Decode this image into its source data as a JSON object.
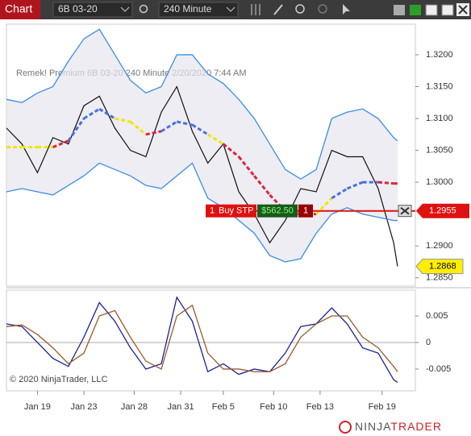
{
  "toolbar": {
    "title": "Chart",
    "instrument": "6B 03-20",
    "interval": "240 Minute"
  },
  "legend_text": "Remek!  Premium  6B 03-20  240 Minute  2/20/2020 7:44 AM",
  "copyright": "© 2020 NinjaTrader, LLC",
  "logo": {
    "part1": "NINJA",
    "part2": "TRADER"
  },
  "order": {
    "quantity": "1",
    "label": "Buy STP",
    "pnl": "$562.50",
    "quantity2": "1",
    "price": {
      "value": 1.2955,
      "label": "1.2955"
    }
  },
  "last_price": {
    "value": 1.2868,
    "label": "1.2868"
  },
  "chart_data": [
    {
      "type": "line",
      "x": [
        0,
        4,
        8,
        12,
        16,
        20,
        24,
        28,
        32,
        36,
        40,
        44,
        48,
        52,
        56,
        60,
        64,
        68,
        72,
        76,
        80,
        84,
        88,
        92,
        96,
        100,
        101
      ],
      "xlim": [
        0,
        105.6
      ],
      "xticks": [
        {
          "value": 8,
          "label": "Jan 19"
        },
        {
          "value": 20,
          "label": "Jan 23"
        },
        {
          "value": 33,
          "label": "Jan 28"
        },
        {
          "value": 45,
          "label": "Jan 31"
        },
        {
          "value": 56,
          "label": "Feb 5"
        },
        {
          "value": 69,
          "label": "Feb 10"
        },
        {
          "value": 81,
          "label": "Feb 13"
        },
        {
          "value": 97,
          "label": "Feb 19"
        }
      ],
      "ylim": [
        1.2837,
        1.3248
      ],
      "yticks": [
        {
          "value": 1.32,
          "label": "1.3200"
        },
        {
          "value": 1.315,
          "label": "1.3150"
        },
        {
          "value": 1.31,
          "label": "1.3100"
        },
        {
          "value": 1.305,
          "label": "1.3050"
        },
        {
          "value": 1.3,
          "label": "1.3000"
        },
        {
          "value": 1.29,
          "label": "1.2900"
        },
        {
          "value": 1.285,
          "label": "1.2850"
        }
      ],
      "series": [
        {
          "name": "Close",
          "color": "#111111",
          "values": [
            1.3085,
            1.306,
            1.3015,
            1.307,
            1.306,
            1.312,
            1.3135,
            1.3085,
            1.305,
            1.304,
            1.311,
            1.315,
            1.308,
            1.303,
            1.306,
            1.2985,
            1.295,
            1.2905,
            1.294,
            1.299,
            1.2985,
            1.305,
            1.304,
            1.304,
            1.299,
            1.2905,
            1.2868
          ]
        },
        {
          "name": "Upper",
          "color": "#3a8ee6",
          "values": [
            1.313,
            1.3125,
            1.314,
            1.315,
            1.319,
            1.3225,
            1.324,
            1.32,
            1.316,
            1.314,
            1.315,
            1.32,
            1.32,
            1.317,
            1.3155,
            1.313,
            1.31,
            1.306,
            1.302,
            1.3005,
            1.302,
            1.31,
            1.311,
            1.3115,
            1.31,
            1.307,
            1.3065
          ]
        },
        {
          "name": "Lower",
          "color": "#3a8ee6",
          "values": [
            1.2985,
            1.299,
            1.2985,
            1.298,
            1.2995,
            1.301,
            1.303,
            1.302,
            1.301,
            1.2995,
            1.299,
            1.301,
            1.303,
            1.2975,
            1.296,
            1.294,
            1.292,
            1.2885,
            1.2875,
            1.288,
            1.292,
            1.295,
            1.296,
            1.295,
            1.2945,
            1.294,
            1.294
          ]
        },
        {
          "name": "Middle",
          "values": [
            1.3055,
            1.3055,
            1.3055,
            1.3055,
            1.3065,
            1.31,
            1.3115,
            1.31,
            1.3095,
            1.3075,
            1.308,
            1.3095,
            1.309,
            1.3075,
            1.306,
            1.304,
            1.301,
            1.298,
            1.2955,
            1.295,
            1.295,
            1.2975,
            1.299,
            1.3,
            1.3,
            1.2998,
            1.2998
          ],
          "colors": [
            "#f2e600",
            "#f2e600",
            "#f2e600",
            "#e0213a",
            "#4a6fe0",
            "#4a6fe0",
            "#4a6fe0",
            "#f2e600",
            "#f2e600",
            "#e0213a",
            "#4a6fe0",
            "#4a6fe0",
            "#4a6fe0",
            "#f2e600",
            "#e0213a",
            "#e0213a",
            "#e0213a",
            "#e0213a",
            "#e0213a",
            "#e0213a",
            "#f2e600",
            "#4a6fe0",
            "#4a6fe0",
            "#4a6fe0",
            "#e0213a",
            "#e0213a",
            "#e0213a"
          ]
        }
      ]
    },
    {
      "type": "line",
      "x": [
        0,
        4,
        8,
        12,
        16,
        20,
        24,
        28,
        32,
        36,
        40,
        44,
        48,
        52,
        56,
        60,
        64,
        68,
        72,
        76,
        80,
        84,
        88,
        92,
        96,
        100,
        101
      ],
      "xlim": [
        0,
        105.6
      ],
      "ylim": [
        -0.0091,
        0.00985
      ],
      "yticks": [
        0.005,
        0,
        -0.005
      ],
      "series": [
        {
          "name": "Fast",
          "color": "#1a1f9a",
          "values": [
            0.0035,
            0.003,
            0,
            -0.003,
            -0.0045,
            0.001,
            0.0075,
            0.004,
            -0.001,
            -0.005,
            -0.004,
            0.0085,
            0.004,
            -0.0055,
            -0.004,
            -0.006,
            -0.005,
            -0.0055,
            -0.002,
            0.003,
            0.0035,
            0.0065,
            0.0035,
            -0.001,
            -0.002,
            -0.007,
            -0.0075
          ]
        },
        {
          "name": "Slow",
          "color": "#9a5a2a",
          "values": [
            0.003,
            0.0033,
            0.0015,
            -0.001,
            -0.004,
            -0.002,
            0.005,
            0.006,
            0.001,
            -0.0035,
            -0.005,
            0.005,
            0.007,
            -0.002,
            -0.005,
            -0.005,
            -0.0055,
            -0.0055,
            -0.004,
            0.001,
            0.0035,
            0.005,
            0.005,
            0.001,
            -0.001,
            -0.0045,
            -0.0055
          ]
        }
      ]
    }
  ]
}
